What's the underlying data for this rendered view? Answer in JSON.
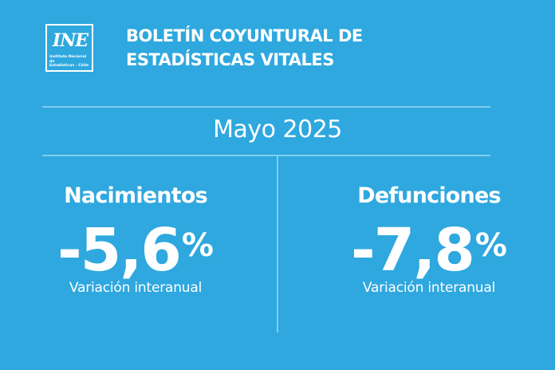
{
  "logo": {
    "mark": "INE",
    "subtitle_line1": "Instituto Nacional de",
    "subtitle_line2": "Estadísticas - Chile"
  },
  "header": {
    "title_line1": "BOLETÍN COYUNTURAL DE",
    "title_line2": "ESTADÍSTICAS VITALES"
  },
  "period": "Mayo 2025",
  "stats": [
    {
      "label": "Nacimientos",
      "value": "-5,6",
      "unit": "%",
      "caption": "Variación interanual"
    },
    {
      "label": "Defunciones",
      "value": "-7,8",
      "unit": "%",
      "caption": "Variación interanual"
    }
  ],
  "colors": {
    "background": "#2ea8df",
    "text": "#ffffff",
    "divider": "#7fcdf0"
  }
}
